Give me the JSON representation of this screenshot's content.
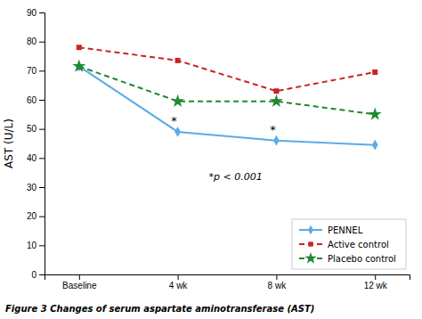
{
  "chart_data": {
    "type": "line",
    "categories": [
      "Baseline",
      "4 wk",
      "8 wk",
      "12 wk"
    ],
    "series": [
      {
        "name": "PENNEL",
        "color": "#5aace8",
        "marker": "diamond",
        "line_style": "solid",
        "values": [
          71.5,
          49.0,
          46.0,
          44.5
        ]
      },
      {
        "name": "Active control",
        "color": "#cc2222",
        "marker": "square",
        "line_style": "dashed",
        "values": [
          78.0,
          73.5,
          63.0,
          69.5
        ]
      },
      {
        "name": "Placebo control",
        "color": "#228833",
        "marker": "star",
        "line_style": "dashed",
        "values": [
          71.5,
          59.5,
          59.5,
          55.0
        ]
      }
    ],
    "ylabel": "AST (U/L)",
    "ylim": [
      0,
      90
    ],
    "yticks": [
      0,
      10,
      20,
      30,
      40,
      50,
      60,
      70,
      80,
      90
    ],
    "annotations": [
      {
        "text": "*",
        "x": "4 wk",
        "y": 51.5
      },
      {
        "text": "*",
        "x": "8 wk",
        "y": 48.5
      },
      {
        "text": "*p < 0.001",
        "y": 35
      }
    ],
    "caption": "Figure 3  Changes of serum aspartate aminotransferase (AST)",
    "legend": "lower right",
    "grid": false
  }
}
